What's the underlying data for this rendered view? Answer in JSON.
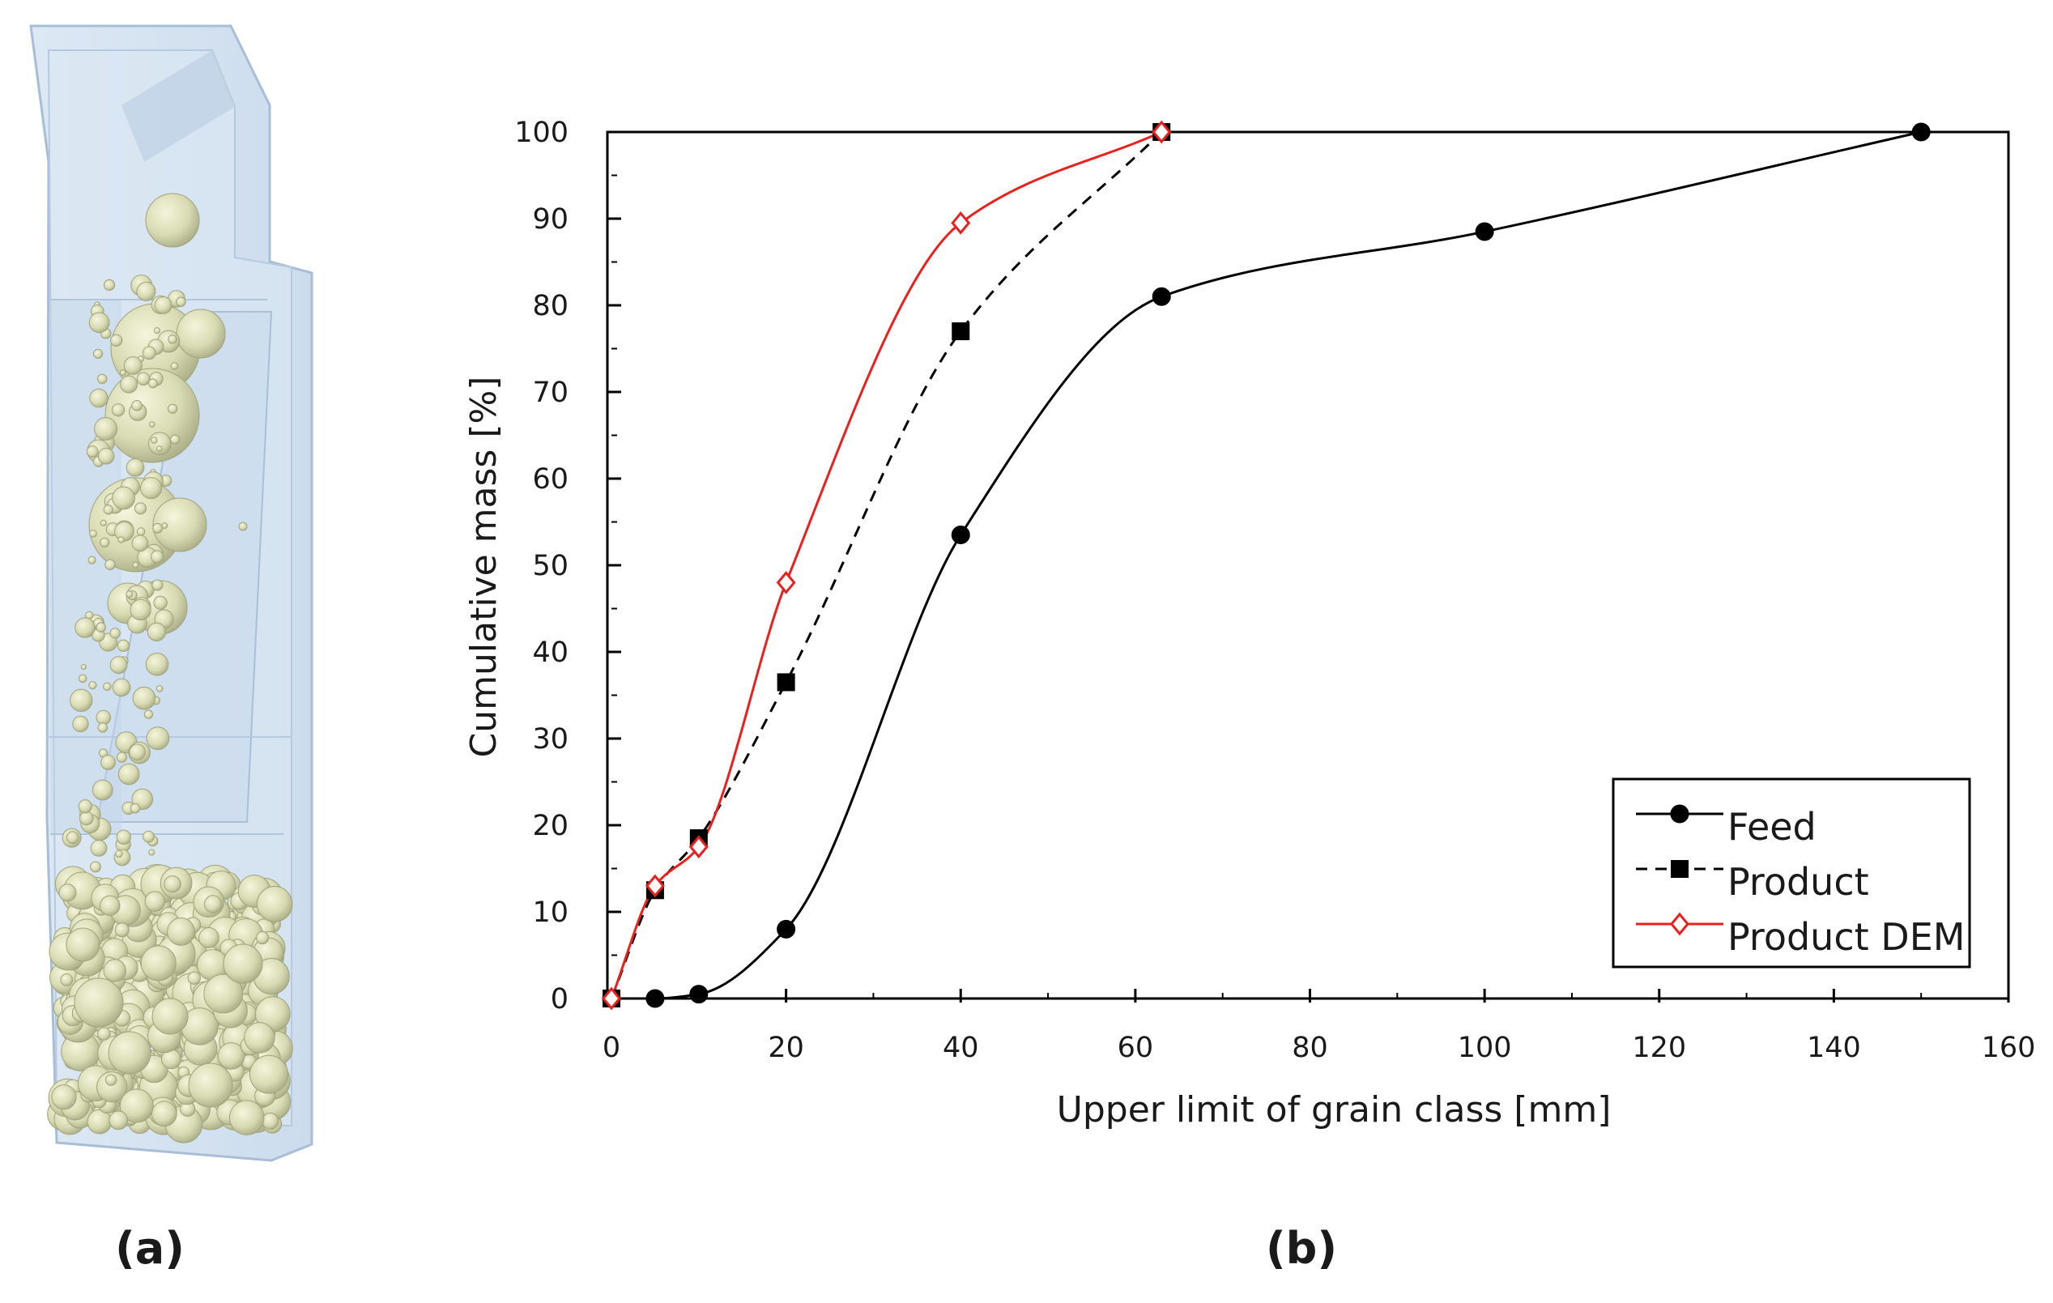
{
  "panels": {
    "a": {
      "label": "(a)",
      "description": "Simulated particle bed in a vertical chute"
    },
    "b": {
      "label": "(b)"
    }
  },
  "colors": {
    "feed": "#000000",
    "product": "#000000",
    "product_dem": "#e8201e",
    "particle_fill": "#dfe1bd",
    "chute_fill": "#cfe0f1"
  },
  "chart_data": {
    "type": "line",
    "title": "",
    "xlabel": "Upper limit of grain class [mm]",
    "ylabel": "Cumulative mass [%]",
    "xlim": [
      0,
      160
    ],
    "ylim": [
      0,
      100
    ],
    "xticks": [
      0,
      20,
      40,
      60,
      80,
      100,
      120,
      140,
      160
    ],
    "yticks": [
      0,
      10,
      20,
      30,
      40,
      50,
      60,
      70,
      80,
      90,
      100
    ],
    "grid": false,
    "legend_position": "bottom-right",
    "series": [
      {
        "name": "Feed",
        "style": "solid",
        "marker": "filled-circle",
        "color": "#000000",
        "x": [
          0,
          5,
          10,
          20,
          40,
          63,
          100,
          150
        ],
        "y": [
          0,
          0,
          0.5,
          8,
          53.5,
          81,
          88.5,
          100
        ]
      },
      {
        "name": "Product",
        "style": "dashed",
        "marker": "filled-square",
        "color": "#000000",
        "x": [
          0,
          5,
          10,
          20,
          40,
          63
        ],
        "y": [
          0,
          12.5,
          18.5,
          36.5,
          77,
          100
        ]
      },
      {
        "name": "Product DEM",
        "style": "solid",
        "marker": "open-diamond",
        "color": "#e8201e",
        "x": [
          0,
          5,
          10,
          20,
          40,
          63
        ],
        "y": [
          0,
          13,
          17.5,
          48,
          89.5,
          100
        ]
      }
    ]
  }
}
